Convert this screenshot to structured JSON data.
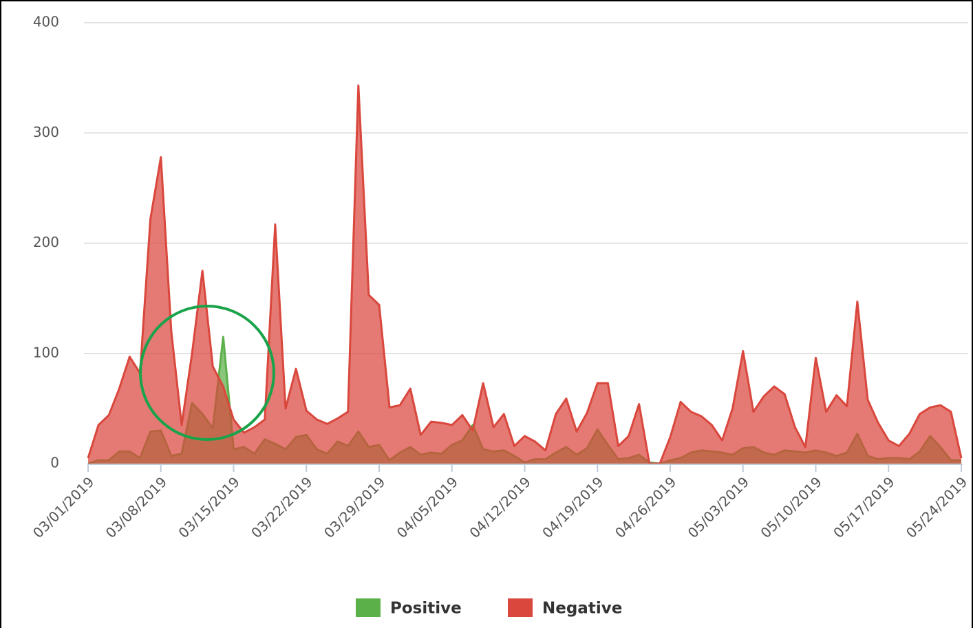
{
  "chart_data": {
    "type": "area",
    "x": [
      "03/01/2019",
      "03/02/2019",
      "03/03/2019",
      "03/04/2019",
      "03/05/2019",
      "03/06/2019",
      "03/07/2019",
      "03/08/2019",
      "03/09/2019",
      "03/10/2019",
      "03/11/2019",
      "03/12/2019",
      "03/13/2019",
      "03/14/2019",
      "03/15/2019",
      "03/16/2019",
      "03/17/2019",
      "03/18/2019",
      "03/19/2019",
      "03/20/2019",
      "03/21/2019",
      "03/22/2019",
      "03/23/2019",
      "03/24/2019",
      "03/25/2019",
      "03/26/2019",
      "03/27/2019",
      "03/28/2019",
      "03/29/2019",
      "03/30/2019",
      "03/31/2019",
      "04/01/2019",
      "04/02/2019",
      "04/03/2019",
      "04/04/2019",
      "04/05/2019",
      "04/06/2019",
      "04/07/2019",
      "04/08/2019",
      "04/09/2019",
      "04/10/2019",
      "04/11/2019",
      "04/12/2019",
      "04/13/2019",
      "04/14/2019",
      "04/15/2019",
      "04/16/2019",
      "04/17/2019",
      "04/18/2019",
      "04/19/2019",
      "04/20/2019",
      "04/21/2019",
      "04/22/2019",
      "04/23/2019",
      "04/24/2019",
      "04/25/2019",
      "04/26/2019",
      "04/27/2019",
      "04/28/2019",
      "04/29/2019",
      "04/30/2019",
      "05/01/2019",
      "05/02/2019",
      "05/03/2019",
      "05/04/2019",
      "05/05/2019",
      "05/06/2019",
      "05/07/2019",
      "05/08/2019",
      "05/09/2019",
      "05/10/2019",
      "05/11/2019",
      "05/12/2019",
      "05/13/2019",
      "05/14/2019",
      "05/15/2019",
      "05/16/2019",
      "05/17/2019",
      "05/18/2019",
      "05/19/2019",
      "05/20/2019",
      "05/21/2019",
      "05/22/2019",
      "05/23/2019",
      "05/24/2019"
    ],
    "xticks": [
      "03/01/2019",
      "03/08/2019",
      "03/15/2019",
      "03/22/2019",
      "03/29/2019",
      "04/05/2019",
      "04/12/2019",
      "04/19/2019",
      "04/26/2019",
      "05/03/2019",
      "05/10/2019",
      "05/17/2019",
      "05/24/2019"
    ],
    "series": [
      {
        "name": "Positive",
        "color": "#5cb04a",
        "values": [
          0,
          3,
          3,
          11,
          11,
          5,
          29,
          30,
          7,
          9,
          55,
          45,
          32,
          115,
          13,
          15,
          9,
          22,
          18,
          13,
          24,
          26,
          13,
          9,
          20,
          16,
          29,
          15,
          17,
          3,
          10,
          15,
          8,
          10,
          9,
          17,
          21,
          35,
          13,
          11,
          12,
          7,
          1,
          4,
          4,
          10,
          15,
          8,
          14,
          31,
          17,
          4,
          5,
          8,
          1,
          0,
          3,
          5,
          10,
          12,
          11,
          10,
          8,
          14,
          15,
          10,
          8,
          12,
          11,
          10,
          12,
          10,
          7,
          10,
          27,
          7,
          4,
          5,
          5,
          4,
          11,
          25,
          15,
          3,
          3
        ]
      },
      {
        "name": "Negative",
        "color": "#d9473d",
        "values": [
          5,
          35,
          44,
          68,
          97,
          82,
          222,
          278,
          120,
          35,
          100,
          175,
          88,
          70,
          40,
          28,
          33,
          40,
          217,
          50,
          86,
          48,
          40,
          36,
          41,
          47,
          343,
          153,
          144,
          51,
          53,
          68,
          26,
          38,
          37,
          35,
          44,
          30,
          73,
          33,
          45,
          16,
          25,
          20,
          12,
          45,
          59,
          29,
          46,
          73,
          73,
          16,
          25,
          54,
          0,
          0,
          24,
          56,
          47,
          43,
          35,
          21,
          50,
          102,
          47,
          61,
          70,
          63,
          33,
          15,
          96,
          47,
          62,
          52,
          147,
          58,
          37,
          21,
          16,
          27,
          45,
          51,
          53,
          47,
          5
        ]
      }
    ],
    "ylim": [
      0,
      400
    ],
    "yticks": [
      0,
      100,
      200,
      300,
      400
    ],
    "grid": true,
    "legend": "bottom"
  }
}
